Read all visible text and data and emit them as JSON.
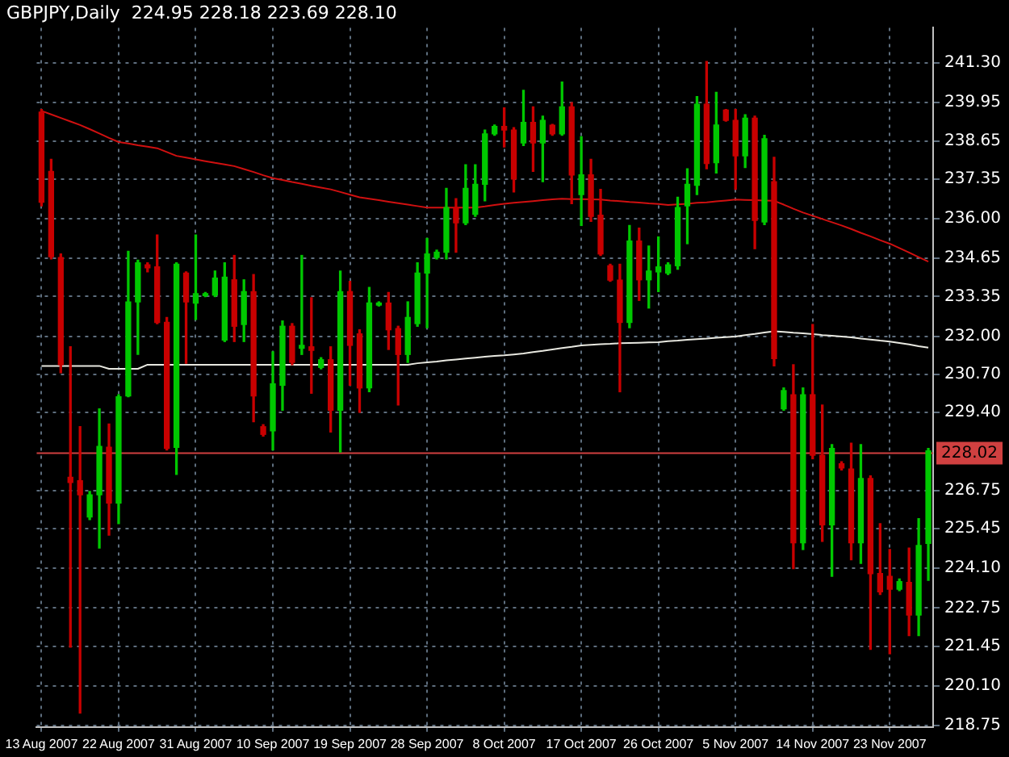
{
  "chart_data": {
    "type": "candlestick",
    "title": "GBPJPY,Daily  224.95 228.18 223.69 228.10",
    "categories": [
      "13 Aug 2007",
      null,
      null,
      null,
      null,
      null,
      null,
      null,
      "22 Aug 2007",
      null,
      null,
      null,
      null,
      null,
      null,
      null,
      "31 Aug 2007",
      null,
      null,
      null,
      null,
      null,
      null,
      null,
      "10 Sep 2007",
      null,
      null,
      null,
      null,
      null,
      null,
      null,
      "19 Sep 2007",
      null,
      null,
      null,
      null,
      null,
      null,
      null,
      "28 Sep 2007",
      null,
      null,
      null,
      null,
      null,
      null,
      null,
      "8 Oct 2007",
      null,
      null,
      null,
      null,
      null,
      null,
      null,
      "17 Oct 2007",
      null,
      null,
      null,
      null,
      null,
      null,
      null,
      "26 Oct 2007",
      null,
      null,
      null,
      null,
      null,
      null,
      null,
      "5 Nov 2007",
      null,
      null,
      null,
      null,
      null,
      null,
      null,
      "14 Nov 2007",
      null,
      null,
      null,
      null,
      null,
      null,
      null,
      "23 Nov 2007",
      null,
      null,
      null,
      null
    ],
    "ohlc": [
      [
        239.63,
        239.72,
        236.44,
        236.56
      ],
      [
        237.61,
        238.02,
        234.63,
        234.71
      ],
      [
        234.68,
        234.8,
        230.76,
        231.03
      ],
      [
        227.2,
        231.64,
        221.42,
        227.02
      ],
      [
        227.08,
        228.92,
        219.17,
        226.6
      ],
      [
        225.85,
        226.72,
        225.76,
        226.6
      ],
      [
        226.6,
        229.53,
        224.79,
        228.25
      ],
      [
        228.22,
        229.01,
        225.23,
        226.32
      ],
      [
        226.32,
        230.01,
        225.62,
        229.94
      ],
      [
        229.97,
        234.89,
        229.94,
        233.17
      ],
      [
        233.17,
        234.59,
        231.38,
        234.5
      ],
      [
        234.43,
        234.5,
        234.19,
        234.33
      ],
      [
        234.36,
        235.45,
        232.43,
        232.47
      ],
      [
        232.47,
        232.64,
        228.13,
        228.18
      ],
      [
        228.22,
        234.5,
        227.3,
        234.45
      ],
      [
        234.15,
        234.19,
        231.08,
        233.17
      ],
      [
        233.13,
        235.45,
        232.57,
        233.45
      ],
      [
        233.38,
        233.49,
        233.35,
        233.45
      ],
      [
        233.4,
        234.22,
        233.35,
        233.98
      ],
      [
        231.87,
        234.5,
        231.82,
        234.01
      ],
      [
        233.92,
        234.75,
        231.82,
        232.34
      ],
      [
        232.4,
        233.92,
        231.82,
        233.52
      ],
      [
        233.52,
        234.1,
        229.09,
        229.97
      ],
      [
        228.92,
        228.99,
        228.6,
        228.66
      ],
      [
        228.78,
        231.47,
        228.13,
        230.38
      ],
      [
        230.33,
        232.52,
        229.48,
        232.34
      ],
      [
        232.34,
        232.43,
        231.03,
        231.11
      ],
      [
        231.59,
        234.75,
        231.38,
        231.69
      ],
      [
        231.64,
        233.31,
        230.06,
        231.52
      ],
      [
        230.94,
        231.27,
        230.89,
        231.2
      ],
      [
        231.2,
        231.64,
        228.74,
        229.48
      ],
      [
        229.48,
        234.22,
        228.06,
        233.52
      ],
      [
        233.52,
        233.87,
        230.33,
        231.69
      ],
      [
        232.08,
        232.22,
        229.41,
        230.24
      ],
      [
        230.24,
        233.66,
        230.11,
        233.13
      ],
      [
        233.06,
        233.17,
        233.03,
        233.13
      ],
      [
        233.13,
        233.49,
        231.55,
        232.22
      ],
      [
        232.26,
        232.34,
        229.66,
        231.38
      ],
      [
        231.38,
        233.17,
        231.11,
        232.64
      ],
      [
        232.43,
        234.5,
        232.34,
        234.15
      ],
      [
        234.15,
        235.33,
        232.29,
        234.8
      ],
      [
        234.68,
        234.93,
        234.63,
        234.86
      ],
      [
        234.86,
        237.03,
        234.63,
        236.38
      ],
      [
        236.38,
        236.68,
        234.86,
        235.86
      ],
      [
        235.86,
        237.84,
        235.8,
        237.03
      ],
      [
        236.15,
        237.84,
        236.08,
        237.17
      ],
      [
        237.17,
        239.02,
        236.61,
        238.89
      ],
      [
        238.89,
        239.19,
        238.84,
        239.14
      ],
      [
        239.14,
        239.77,
        238.44,
        239.02
      ],
      [
        239.02,
        239.1,
        236.91,
        237.35
      ],
      [
        238.58,
        240.37,
        238.49,
        239.28
      ],
      [
        239.28,
        239.81,
        237.61,
        238.58
      ],
      [
        238.58,
        239.49,
        237.26,
        239.35
      ],
      [
        239.18,
        239.21,
        238.84,
        238.89
      ],
      [
        238.89,
        240.65,
        238.84,
        239.81
      ],
      [
        239.81,
        239.95,
        236.51,
        237.49
      ],
      [
        236.82,
        238.79,
        235.77,
        237.49
      ],
      [
        237.49,
        238.02,
        235.91,
        236.08
      ],
      [
        236.12,
        237.0,
        234.75,
        234.8
      ],
      [
        234.4,
        234.45,
        233.87,
        233.91
      ],
      [
        233.91,
        234.45,
        230.11,
        232.47
      ],
      [
        232.47,
        235.77,
        232.29,
        235.24
      ],
      [
        235.24,
        235.68,
        233.22,
        233.92
      ],
      [
        233.92,
        235.07,
        232.96,
        234.22
      ],
      [
        234.19,
        235.38,
        233.52,
        234.36
      ],
      [
        234.15,
        234.5,
        234.1,
        234.43
      ],
      [
        234.4,
        236.73,
        234.28,
        236.38
      ],
      [
        236.44,
        237.7,
        235.15,
        237.17
      ],
      [
        237.14,
        240.16,
        236.82,
        239.9
      ],
      [
        239.9,
        241.35,
        237.7,
        237.88
      ],
      [
        237.91,
        240.3,
        237.56,
        239.19
      ],
      [
        239.7,
        239.72,
        239.32,
        239.35
      ],
      [
        239.35,
        239.72,
        237.0,
        238.14
      ],
      [
        238.14,
        239.54,
        237.74,
        239.42
      ],
      [
        239.42,
        239.49,
        234.98,
        235.94
      ],
      [
        235.89,
        238.84,
        235.8,
        238.72
      ],
      [
        237.26,
        238.09,
        230.99,
        231.24
      ],
      [
        229.53,
        230.24,
        229.48,
        230.15
      ],
      [
        230.01,
        231.03,
        224.09,
        224.97
      ],
      [
        224.97,
        230.24,
        224.74,
        230.01
      ],
      [
        230.01,
        232.4,
        227.83,
        227.95
      ],
      [
        227.95,
        229.66,
        225.02,
        225.58
      ],
      [
        225.58,
        228.31,
        223.83,
        228.18
      ],
      [
        227.66,
        227.73,
        227.45,
        227.52
      ],
      [
        227.48,
        228.36,
        224.39,
        224.97
      ],
      [
        224.97,
        228.31,
        224.27,
        227.16
      ],
      [
        227.16,
        227.25,
        221.34,
        223.92
      ],
      [
        223.92,
        225.62,
        223.21,
        223.3
      ],
      [
        223.83,
        224.74,
        221.19,
        223.39
      ],
      [
        223.39,
        223.74,
        223.34,
        223.65
      ],
      [
        223.62,
        224.79,
        221.81,
        222.51
      ],
      [
        222.51,
        225.79,
        221.81,
        224.88
      ],
      [
        224.95,
        228.18,
        223.69,
        228.1
      ]
    ],
    "colors": [
      "#c80000",
      "#c80000",
      "#c80000",
      "#c80000",
      "#c80000",
      "#00c800",
      "#00c800",
      "#c80000",
      "#00c800",
      "#00c800",
      "#00c800",
      "#c80000",
      "#c80000",
      "#c80000",
      "#00c800",
      "#c80000",
      "#00c800",
      "#00c800",
      "#00c800",
      "#00c800",
      "#c80000",
      "#00c800",
      "#c80000",
      "#c80000",
      "#00c800",
      "#00c800",
      "#c80000",
      "#00c800",
      "#c80000",
      "#00c800",
      "#c80000",
      "#00c800",
      "#c80000",
      "#c80000",
      "#00c800",
      "#00c800",
      "#c80000",
      "#c80000",
      "#00c800",
      "#00c800",
      "#00c800",
      "#00c800",
      "#00c800",
      "#c80000",
      "#00c800",
      "#00c800",
      "#00c800",
      "#00c800",
      "#c80000",
      "#c80000",
      "#00c800",
      "#c80000",
      "#00c800",
      "#c80000",
      "#00c800",
      "#c80000",
      "#00c800",
      "#c80000",
      "#c80000",
      "#c80000",
      "#c80000",
      "#00c800",
      "#c80000",
      "#00c800",
      "#00c800",
      "#00c800",
      "#00c800",
      "#00c800",
      "#00c800",
      "#c80000",
      "#00c800",
      "#c80000",
      "#c80000",
      "#00c800",
      "#c80000",
      "#00c800",
      "#c80000",
      "#00c800",
      "#c80000",
      "#00c800",
      "#c80000",
      "#c80000",
      "#00c800",
      "#c80000",
      "#c80000",
      "#00c800",
      "#c80000",
      "#c80000",
      "#c80000",
      "#00c800",
      "#c80000",
      "#00c800",
      "#00c800"
    ],
    "series": [
      {
        "type": "line",
        "color": "#d01010",
        "values": [
          239.67,
          239.55,
          239.43,
          239.31,
          239.19,
          239.05,
          238.9,
          238.75,
          238.61,
          238.56,
          238.5,
          238.45,
          238.4,
          238.27,
          238.14,
          238.08,
          238.02,
          237.96,
          237.9,
          237.85,
          237.79,
          237.69,
          237.59,
          237.48,
          237.38,
          237.32,
          237.25,
          237.19,
          237.12,
          237.06,
          237.0,
          236.91,
          236.82,
          236.73,
          236.68,
          236.63,
          236.58,
          236.53,
          236.48,
          236.43,
          236.38,
          236.38,
          236.38,
          236.38,
          236.38,
          236.38,
          236.42,
          236.47,
          236.51,
          236.54,
          236.57,
          236.6,
          236.63,
          236.66,
          236.68,
          236.67,
          236.67,
          236.66,
          236.65,
          236.62,
          236.6,
          236.57,
          236.55,
          236.52,
          236.5,
          236.47,
          236.49,
          236.51,
          236.54,
          236.56,
          236.59,
          236.62,
          236.65,
          236.64,
          236.63,
          236.62,
          236.61,
          236.48,
          236.34,
          236.21,
          236.1,
          235.99,
          235.88,
          235.77,
          235.65,
          235.52,
          235.4,
          235.27,
          235.15,
          235.0,
          234.85,
          234.69,
          234.54
        ]
      },
      {
        "type": "line",
        "color": "#e8e8e0",
        "values": [
          230.99,
          230.99,
          230.99,
          230.99,
          230.99,
          230.99,
          230.99,
          230.89,
          230.89,
          230.89,
          230.89,
          231.03,
          231.03,
          231.03,
          231.03,
          231.03,
          231.03,
          231.03,
          231.03,
          231.03,
          231.03,
          231.03,
          231.03,
          231.03,
          231.03,
          231.03,
          231.03,
          231.03,
          231.03,
          231.03,
          231.03,
          231.03,
          231.03,
          231.03,
          231.03,
          231.03,
          231.03,
          231.03,
          231.03,
          231.08,
          231.11,
          231.14,
          231.18,
          231.21,
          231.24,
          231.27,
          231.3,
          231.33,
          231.35,
          231.38,
          231.41,
          231.46,
          231.5,
          231.55,
          231.6,
          231.64,
          231.69,
          231.71,
          231.73,
          231.74,
          231.76,
          231.77,
          231.78,
          231.79,
          231.8,
          231.83,
          231.85,
          231.88,
          231.9,
          231.92,
          231.95,
          231.97,
          231.99,
          232.04,
          232.08,
          232.13,
          232.17,
          232.15,
          232.12,
          232.1,
          232.07,
          232.04,
          232.02,
          231.99,
          231.96,
          231.92,
          231.89,
          231.85,
          231.82,
          231.77,
          231.72,
          231.66,
          231.61
        ]
      }
    ],
    "ylim": [
      218.7,
      242.5
    ],
    "yticks": [
      {
        "value": 241.3,
        "label": "241.30"
      },
      {
        "value": 239.95,
        "label": "239.95"
      },
      {
        "value": 238.65,
        "label": "238.65"
      },
      {
        "value": 237.35,
        "label": "237.35"
      },
      {
        "value": 236.0,
        "label": "236.00"
      },
      {
        "value": 234.65,
        "label": "234.65"
      },
      {
        "value": 233.35,
        "label": "233.35"
      },
      {
        "value": 232.0,
        "label": "232.00"
      },
      {
        "value": 230.7,
        "label": "230.70"
      },
      {
        "value": 229.4,
        "label": "229.40"
      },
      {
        "value": 226.75,
        "label": "226.75"
      },
      {
        "value": 225.45,
        "label": "225.45"
      },
      {
        "value": 224.1,
        "label": "224.10"
      },
      {
        "value": 222.75,
        "label": "222.75"
      },
      {
        "value": 221.45,
        "label": "221.45"
      },
      {
        "value": 220.1,
        "label": "220.10"
      },
      {
        "value": 218.75,
        "label": "218.75"
      }
    ],
    "ref_lines": [
      {
        "axis": "y",
        "value": 228.02,
        "label": "228.02",
        "color": "#d04040"
      }
    ],
    "grid": true,
    "legend": false
  }
}
